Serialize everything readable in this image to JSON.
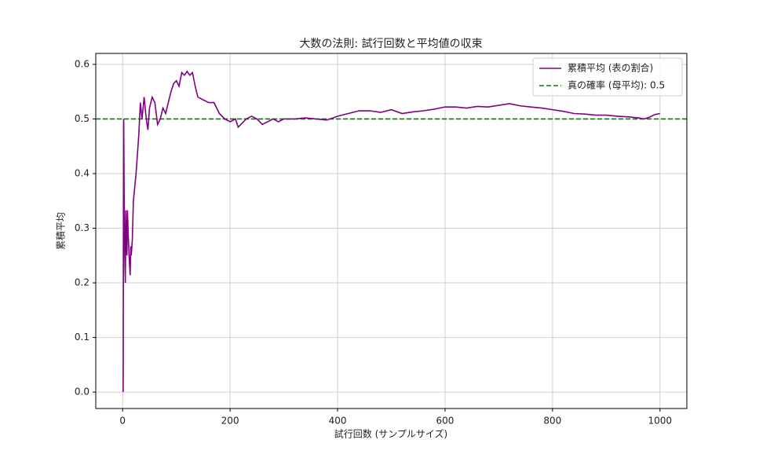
{
  "chart_data": {
    "type": "line",
    "title": "大数の法則: 試行回数と平均値の収束",
    "xlabel": "試行回数 (サンプルサイズ)",
    "ylabel": "累積平均",
    "series": [
      {
        "name": "累積平均 (表の割合)",
        "color": "purple",
        "x": [
          1,
          2,
          3,
          4,
          5,
          6,
          7,
          8,
          9,
          10,
          11,
          12,
          13,
          14,
          15,
          16,
          18,
          20,
          25,
          30,
          33,
          36,
          40,
          44,
          47,
          50,
          55,
          60,
          65,
          70,
          75,
          80,
          85,
          90,
          95,
          100,
          105,
          110,
          115,
          120,
          125,
          130,
          135,
          140,
          150,
          160,
          170,
          180,
          190,
          200,
          210,
          215,
          220,
          230,
          240,
          250,
          260,
          270,
          280,
          290,
          300,
          320,
          340,
          360,
          380,
          400,
          420,
          440,
          460,
          480,
          500,
          520,
          540,
          560,
          580,
          600,
          620,
          640,
          660,
          680,
          700,
          720,
          740,
          760,
          780,
          800,
          820,
          840,
          860,
          880,
          900,
          920,
          940,
          960,
          970,
          980,
          990,
          1000
        ],
        "values": [
          0,
          0.5,
          0.333,
          0.25,
          0.2,
          0.333,
          0.286,
          0.25,
          0.333,
          0.3,
          0.273,
          0.25,
          0.231,
          0.214,
          0.267,
          0.25,
          0.278,
          0.35,
          0.4,
          0.47,
          0.53,
          0.5,
          0.54,
          0.5,
          0.48,
          0.52,
          0.54,
          0.53,
          0.49,
          0.5,
          0.52,
          0.51,
          0.53,
          0.55,
          0.565,
          0.57,
          0.56,
          0.585,
          0.58,
          0.587,
          0.58,
          0.585,
          0.56,
          0.54,
          0.535,
          0.53,
          0.53,
          0.51,
          0.5,
          0.495,
          0.5,
          0.485,
          0.49,
          0.5,
          0.505,
          0.5,
          0.49,
          0.495,
          0.5,
          0.495,
          0.5,
          0.5,
          0.502,
          0.5,
          0.498,
          0.505,
          0.51,
          0.515,
          0.515,
          0.512,
          0.517,
          0.51,
          0.513,
          0.515,
          0.518,
          0.522,
          0.522,
          0.52,
          0.523,
          0.522,
          0.525,
          0.528,
          0.524,
          0.522,
          0.52,
          0.517,
          0.514,
          0.51,
          0.509,
          0.507,
          0.507,
          0.505,
          0.504,
          0.502,
          0.5,
          0.503,
          0.508,
          0.51
        ]
      }
    ],
    "reference_line": {
      "name": "真の確率 (母平均): 0.5",
      "value": 0.5,
      "color": "green"
    },
    "xlim": [
      -50,
      1050
    ],
    "ylim": [
      -0.03,
      0.62
    ],
    "xticks": [
      0,
      200,
      400,
      600,
      800,
      1000
    ],
    "yticks": [
      {
        "value": 0,
        "label": "0.0"
      },
      0.1,
      0.2,
      0.3,
      0.4,
      0.5,
      0.6
    ],
    "grid": true,
    "legend": "upper right"
  }
}
